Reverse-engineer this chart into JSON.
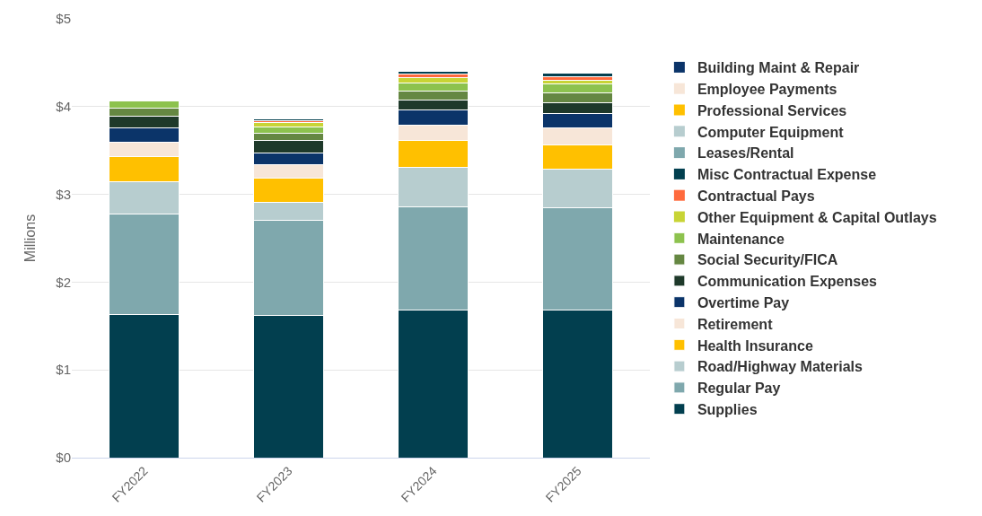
{
  "chart_data": {
    "type": "bar",
    "stacked": true,
    "ylabel": "Millions",
    "categories": [
      "FY2022",
      "FY2023",
      "FY2024",
      "FY2025"
    ],
    "ylim": [
      0,
      5
    ],
    "yticks": [
      {
        "value": 0,
        "label": "$0"
      },
      {
        "value": 1,
        "label": "$1"
      },
      {
        "value": 2,
        "label": "$2"
      },
      {
        "value": 3,
        "label": "$3"
      },
      {
        "value": 4,
        "label": "$4"
      },
      {
        "value": 5,
        "label": "$5"
      }
    ],
    "grid": "y",
    "legend": "right",
    "series": [
      {
        "name": "Supplies",
        "color": "#023f4f",
        "values": [
          1.63,
          1.62,
          1.68,
          1.68
        ]
      },
      {
        "name": "Regular Pay",
        "color": "#7fa8ad",
        "values": [
          1.15,
          1.08,
          1.18,
          1.17
        ]
      },
      {
        "name": "Road/Highway Materials",
        "color": "#b7cdcf",
        "values": [
          0.36,
          0.21,
          0.45,
          0.44
        ]
      },
      {
        "name": "Health Insurance",
        "color": "#ffc000",
        "values": [
          0.29,
          0.28,
          0.3,
          0.27
        ]
      },
      {
        "name": "Retirement",
        "color": "#f7e6d8",
        "values": [
          0.16,
          0.15,
          0.18,
          0.2
        ]
      },
      {
        "name": "Overtime Pay",
        "color": "#0b3469",
        "values": [
          0.17,
          0.13,
          0.17,
          0.16
        ]
      },
      {
        "name": "Communication Expenses",
        "color": "#1e392a",
        "values": [
          0.13,
          0.14,
          0.11,
          0.12
        ]
      },
      {
        "name": "Social Security/FICA",
        "color": "#658742",
        "values": [
          0.09,
          0.09,
          0.11,
          0.12
        ]
      },
      {
        "name": "Maintenance",
        "color": "#8dc24e",
        "values": [
          0.08,
          0.07,
          0.09,
          0.1
        ]
      },
      {
        "name": "Other Equipment & Capital Outlays",
        "color": "#c8d435",
        "values": [
          null,
          0.05,
          0.06,
          0.04
        ]
      },
      {
        "name": "Contractual Pays",
        "color": "#ff6a3d",
        "values": [
          null,
          0.02,
          0.04,
          0.04
        ]
      },
      {
        "name": "Misc Contractual Expense",
        "color": "#023f4f",
        "values": [
          null,
          0.02,
          0.03,
          0.04
        ]
      },
      {
        "name": "Leases/Rental",
        "color": "#7fa8ad",
        "values": [
          null,
          null,
          null,
          null
        ]
      },
      {
        "name": "Computer Equipment",
        "color": "#b7cdcf",
        "values": [
          null,
          null,
          null,
          null
        ]
      },
      {
        "name": "Professional Services",
        "color": "#ffc000",
        "values": [
          null,
          null,
          null,
          null
        ]
      },
      {
        "name": "Employee Payments",
        "color": "#f7e6d8",
        "values": [
          null,
          null,
          null,
          null
        ]
      },
      {
        "name": "Building Maint & Repair",
        "color": "#0b3469",
        "values": [
          null,
          null,
          null,
          null
        ]
      }
    ]
  }
}
